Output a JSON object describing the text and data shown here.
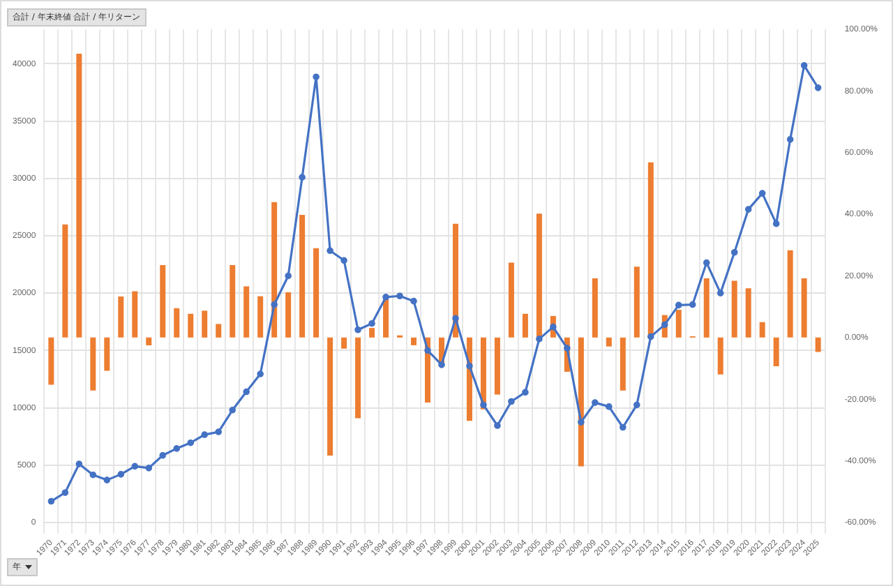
{
  "chart_data": {
    "type": "bar",
    "annotations": [
      "合計 / 年末終値 合計 / 年リターン"
    ],
    "xlabel": "年",
    "categories": [
      "1970",
      "1971",
      "1972",
      "1973",
      "1974",
      "1975",
      "1976",
      "1977",
      "1978",
      "1979",
      "1980",
      "1981",
      "1982",
      "1983",
      "1984",
      "1985",
      "1986",
      "1987",
      "1988",
      "1989",
      "1990",
      "1991",
      "1992",
      "1993",
      "1994",
      "1995",
      "1996",
      "1997",
      "1998",
      "1999",
      "2000",
      "2001",
      "2002",
      "2003",
      "2004",
      "2005",
      "2006",
      "2007",
      "2008",
      "2009",
      "2010",
      "2011",
      "2012",
      "2013",
      "2014",
      "2015",
      "2016",
      "2017",
      "2018",
      "2019",
      "2020",
      "2021",
      "2022",
      "2023",
      "2024",
      "2025"
    ],
    "series": [
      {
        "axis": "y2",
        "color": "#ed7d31",
        "values": [
          -15.3,
          36.7,
          92.1,
          -17.2,
          -10.8,
          13.3,
          15.0,
          -2.5,
          23.5,
          9.5,
          7.7,
          8.7,
          4.4,
          23.5,
          16.6,
          13.4,
          43.9,
          14.7,
          39.8,
          29.0,
          -38.3,
          -3.6,
          -26.2,
          3.1,
          13.8,
          0.7,
          -2.5,
          -21.1,
          -8.6,
          36.9,
          -27.0,
          -23.3,
          -18.5,
          24.3,
          7.7,
          40.2,
          7.0,
          -11.1,
          -41.8,
          19.2,
          -2.9,
          -17.2,
          23.0,
          56.8,
          7.3,
          9.0,
          0.4,
          19.2,
          -12.0,
          18.4,
          16.0,
          5.0,
          -9.3,
          28.3,
          19.2,
          -4.7
        ]
      },
      {
        "type": "line",
        "axis": "y",
        "color": "#4472c4",
        "marker": "circle",
        "line_style": "solid",
        "values": [
          1850,
          2600,
          5100,
          4150,
          3700,
          4200,
          4900,
          4750,
          5850,
          6450,
          6950,
          7650,
          7900,
          9800,
          11400,
          12950,
          19000,
          21500,
          30100,
          38850,
          23700,
          22850,
          16800,
          17350,
          19650,
          19750,
          19300,
          15000,
          13750,
          17800,
          13650,
          10250,
          8450,
          10550,
          11350,
          16000,
          17050,
          15200,
          8750,
          10450,
          10100,
          8300,
          10250,
          16200,
          17250,
          18950,
          19000,
          22650,
          20000,
          23550,
          27300,
          28700,
          26050,
          33400,
          39850,
          37900
        ]
      }
    ],
    "ylim": [
      0,
      43000
    ],
    "yticks": [
      0,
      5000,
      10000,
      15000,
      20000,
      25000,
      30000,
      35000,
      40000
    ],
    "y2lim": [
      -60,
      100
    ],
    "y2ticks": [
      {
        "value": -60,
        "label": "-60.00%"
      },
      {
        "value": -40,
        "label": "-40.00%"
      },
      {
        "value": -20,
        "label": "-20.00%"
      },
      {
        "value": 0,
        "label": "0.00%"
      },
      {
        "value": 20,
        "label": "20.00%"
      },
      {
        "value": 40,
        "label": "40.00%"
      },
      {
        "value": 60,
        "label": "60.00%"
      },
      {
        "value": 80,
        "label": "80.00%"
      },
      {
        "value": 100,
        "label": "100.00%"
      }
    ],
    "grid": true,
    "legend": false
  }
}
